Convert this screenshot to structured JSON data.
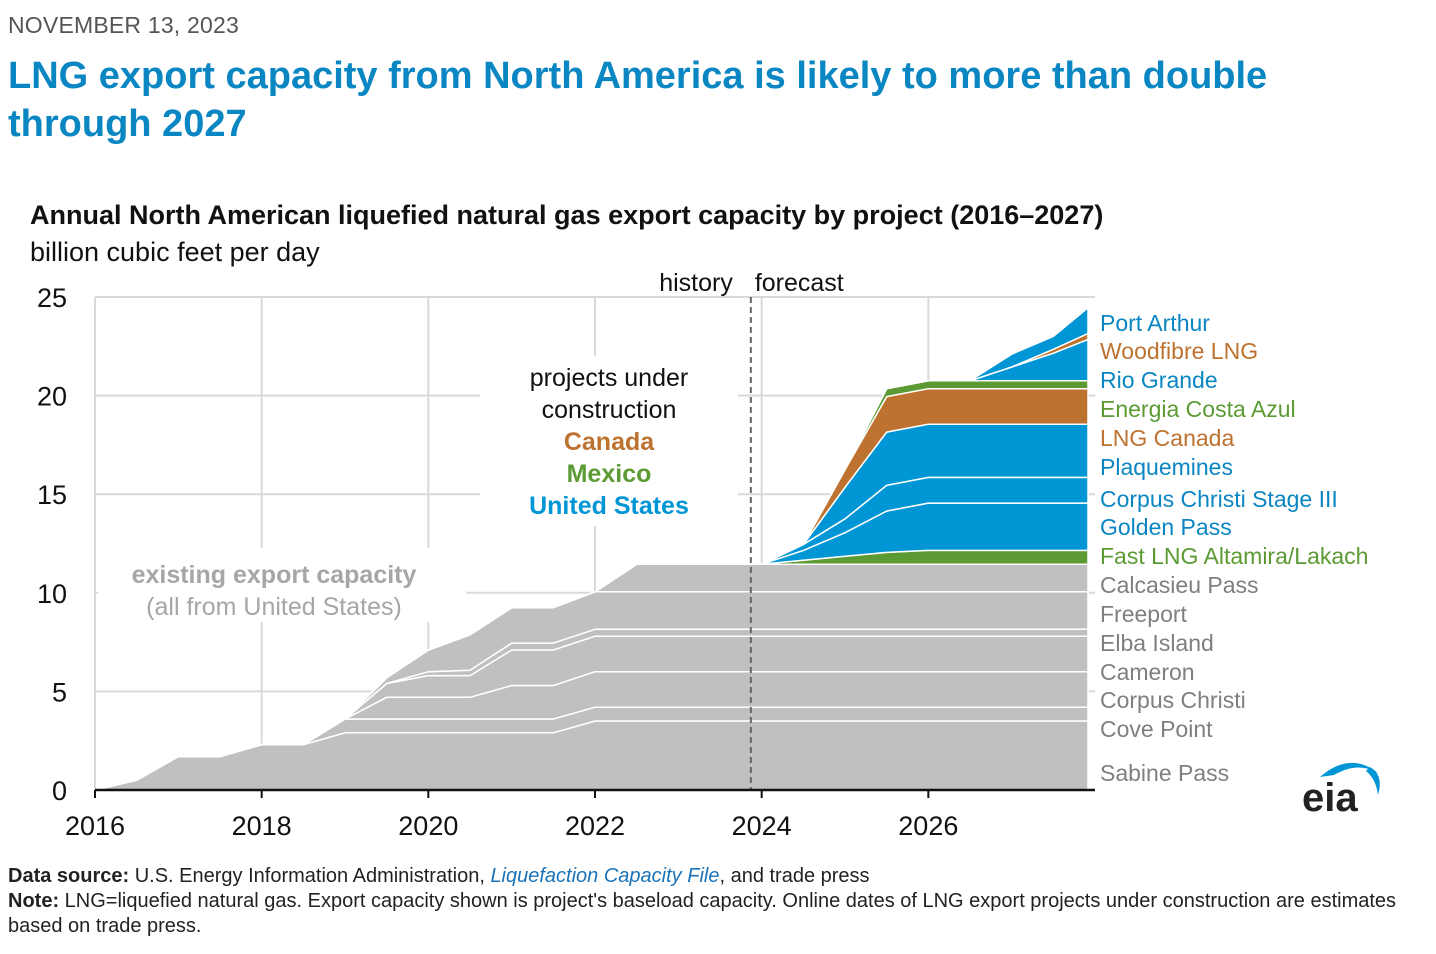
{
  "date": "NOVEMBER 13, 2023",
  "headline": "LNG export capacity from North America is likely to more than double through 2027",
  "footer": {
    "source_label": "Data source:",
    "source_text_1": "U.S. Energy Information Administration,",
    "source_link": "Liquefaction Capacity File",
    "source_text_2": ", and trade press",
    "note_label": "Note:",
    "note_text": "LNG=liquefied natural gas. Export capacity shown is project's baseload capacity. Online dates of LNG export projects under construction are estimates based on trade press."
  },
  "logo_text": "eia",
  "colors": {
    "existing": "#c0c0c0",
    "canada": "#bd7230",
    "mexico": "#5c9a33",
    "united_states": "#0096d6",
    "existing_label": "#a6a6a6",
    "headline": "#0a86c2"
  },
  "chart_data": {
    "type": "area",
    "stacked": true,
    "title": "Annual North American liquefied natural gas export capacity by project (2016–2027)",
    "ylabel": "billion cubic feet per day",
    "xlim": [
      2016,
      2028
    ],
    "ylim": [
      0,
      25
    ],
    "x_ticks": [
      2016,
      2018,
      2020,
      2022,
      2024,
      2026
    ],
    "y_ticks": [
      0,
      5,
      10,
      15,
      20,
      25
    ],
    "grid": true,
    "history_forecast_divider_x": 2023.87,
    "history_label": "history",
    "forecast_label": "forecast",
    "annotation_existing": [
      "existing export capacity",
      "(all from United States)"
    ],
    "annotation_construction": {
      "header": [
        "projects under",
        "construction"
      ],
      "groups": [
        "Canada",
        "Mexico",
        "United States"
      ]
    },
    "legend_position": "right",
    "series": [
      {
        "name": "Sabine Pass",
        "group": "existing",
        "points": [
          [
            2016,
            0
          ],
          [
            2016.5,
            0.5
          ],
          [
            2017,
            1.7
          ],
          [
            2017.5,
            1.7
          ],
          [
            2018,
            2.3
          ],
          [
            2018.5,
            2.3
          ],
          [
            2019,
            2.9
          ],
          [
            2021.5,
            2.9
          ],
          [
            2022,
            3.5
          ],
          [
            2028,
            3.5
          ]
        ]
      },
      {
        "name": "Cove Point",
        "group": "existing",
        "points": [
          [
            2016,
            0
          ],
          [
            2018,
            0
          ],
          [
            2018.5,
            0
          ],
          [
            2019,
            0.7
          ],
          [
            2028,
            0.7
          ]
        ]
      },
      {
        "name": "Corpus Christi",
        "group": "existing",
        "points": [
          [
            2016,
            0
          ],
          [
            2019,
            0
          ],
          [
            2019.5,
            1.1
          ],
          [
            2020.5,
            1.1
          ],
          [
            2021,
            1.7
          ],
          [
            2021.5,
            1.7
          ],
          [
            2022,
            1.8
          ],
          [
            2028,
            1.8
          ]
        ]
      },
      {
        "name": "Cameron",
        "group": "existing",
        "points": [
          [
            2016,
            0
          ],
          [
            2019,
            0
          ],
          [
            2019.5,
            0.7
          ],
          [
            2020,
            1.1
          ],
          [
            2020.5,
            1.1
          ],
          [
            2021,
            1.8
          ],
          [
            2028,
            1.8
          ]
        ]
      },
      {
        "name": "Elba Island",
        "group": "existing",
        "points": [
          [
            2016,
            0
          ],
          [
            2019.5,
            0
          ],
          [
            2020,
            0.2
          ],
          [
            2021,
            0.35
          ],
          [
            2028,
            0.35
          ]
        ]
      },
      {
        "name": "Freeport",
        "group": "existing",
        "points": [
          [
            2016,
            0
          ],
          [
            2019,
            0
          ],
          [
            2019.5,
            0.3
          ],
          [
            2020,
            1.1
          ],
          [
            2020.5,
            1.8
          ],
          [
            2021,
            1.8
          ],
          [
            2021.5,
            1.8
          ],
          [
            2022,
            1.9
          ],
          [
            2028,
            1.9
          ]
        ]
      },
      {
        "name": "Calcasieu Pass",
        "group": "existing",
        "points": [
          [
            2016,
            0
          ],
          [
            2022,
            0
          ],
          [
            2022.5,
            1.4
          ],
          [
            2028,
            1.4
          ]
        ]
      },
      {
        "name": "Fast LNG Altamira/Lakach",
        "group": "mexico",
        "points": [
          [
            2016,
            0
          ],
          [
            2024,
            0
          ],
          [
            2024.5,
            0.2
          ],
          [
            2025.5,
            0.6
          ],
          [
            2026,
            0.7
          ],
          [
            2028,
            0.7
          ]
        ]
      },
      {
        "name": "Golden Pass",
        "group": "united_states",
        "points": [
          [
            2016,
            0
          ],
          [
            2024,
            0
          ],
          [
            2024.5,
            0.5
          ],
          [
            2025,
            1.2
          ],
          [
            2025.5,
            2.1
          ],
          [
            2026,
            2.4
          ],
          [
            2028,
            2.4
          ]
        ]
      },
      {
        "name": "Corpus Christi Stage III",
        "group": "united_states",
        "points": [
          [
            2016,
            0
          ],
          [
            2024,
            0
          ],
          [
            2024.5,
            0.3
          ],
          [
            2025,
            0.7
          ],
          [
            2025.5,
            1.3
          ],
          [
            2026,
            1.3
          ],
          [
            2028,
            1.3
          ]
        ]
      },
      {
        "name": "Plaquemines",
        "group": "united_states",
        "points": [
          [
            2016,
            0
          ],
          [
            2024.5,
            0
          ],
          [
            2025,
            1.6
          ],
          [
            2025.5,
            2.7
          ],
          [
            2026,
            2.7
          ],
          [
            2028,
            2.7
          ]
        ]
      },
      {
        "name": "LNG Canada",
        "group": "canada",
        "points": [
          [
            2016,
            0
          ],
          [
            2024.5,
            0
          ],
          [
            2025,
            0.9
          ],
          [
            2025.5,
            1.8
          ],
          [
            2026,
            1.8
          ],
          [
            2028,
            1.8
          ]
        ]
      },
      {
        "name": "Energia Costa Azul",
        "group": "mexico",
        "points": [
          [
            2016,
            0
          ],
          [
            2025,
            0
          ],
          [
            2025.5,
            0.4
          ],
          [
            2028,
            0.4
          ]
        ]
      },
      {
        "name": "Rio Grande",
        "group": "united_states",
        "points": [
          [
            2016,
            0
          ],
          [
            2026.5,
            0
          ],
          [
            2027,
            0.7
          ],
          [
            2027.5,
            1.4
          ],
          [
            2028,
            2.1
          ]
        ]
      },
      {
        "name": "Woodfibre LNG",
        "group": "canada",
        "points": [
          [
            2016,
            0
          ],
          [
            2027,
            0
          ],
          [
            2027.5,
            0.2
          ],
          [
            2028,
            0.3
          ]
        ]
      },
      {
        "name": "Port Arthur",
        "group": "united_states",
        "points": [
          [
            2016,
            0
          ],
          [
            2026.5,
            0
          ],
          [
            2027,
            0.65
          ],
          [
            2027.5,
            0.65
          ],
          [
            2028,
            1.3
          ]
        ]
      }
    ]
  }
}
